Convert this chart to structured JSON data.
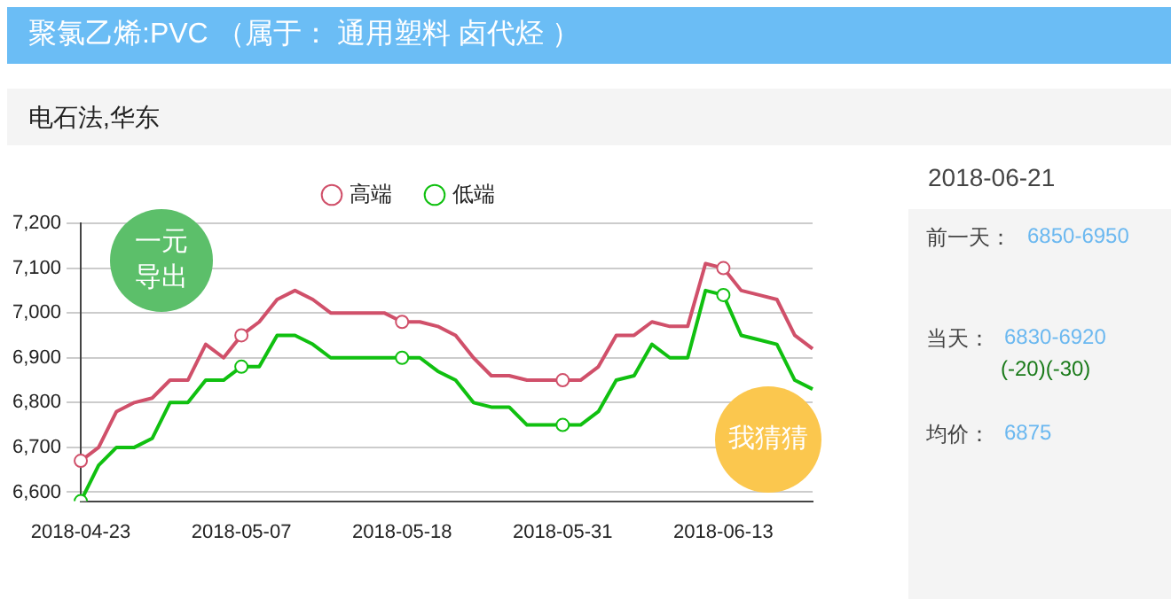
{
  "chart_data": {
    "type": "line",
    "title": "聚氯乙烯:PVC （属于： 通用塑料 卤代烃 ）",
    "subtitle": "电石法,华东",
    "categories": [
      "2018-04-23",
      null,
      null,
      null,
      null,
      null,
      null,
      null,
      null,
      "2018-05-07",
      null,
      null,
      null,
      null,
      null,
      null,
      null,
      null,
      "2018-05-18",
      null,
      null,
      null,
      null,
      null,
      null,
      null,
      null,
      "2018-05-31",
      null,
      null,
      null,
      null,
      null,
      null,
      null,
      null,
      "2018-06-13",
      null,
      null,
      null,
      null,
      null
    ],
    "series": [
      {
        "name": "高端",
        "color": "#d0506a",
        "values": [
          6670,
          6700,
          6780,
          6800,
          6810,
          6850,
          6850,
          6930,
          6900,
          6950,
          6980,
          7030,
          7050,
          7030,
          7000,
          7000,
          7000,
          7000,
          6980,
          6980,
          6970,
          6950,
          6900,
          6860,
          6860,
          6850,
          6850,
          6850,
          6850,
          6880,
          6950,
          6950,
          6980,
          6970,
          6970,
          7110,
          7100,
          7050,
          7040,
          7030,
          6950,
          6920
        ]
      },
      {
        "name": "低端",
        "color": "#10c010",
        "values": [
          6580,
          6660,
          6700,
          6700,
          6720,
          6800,
          6800,
          6850,
          6850,
          6880,
          6880,
          6950,
          6950,
          6930,
          6900,
          6900,
          6900,
          6900,
          6900,
          6900,
          6870,
          6850,
          6800,
          6790,
          6790,
          6750,
          6750,
          6750,
          6750,
          6780,
          6850,
          6860,
          6930,
          6900,
          6900,
          7050,
          7040,
          6950,
          6940,
          6930,
          6850,
          6830
        ]
      }
    ],
    "ylim": [
      6580,
      7200
    ],
    "yticks": [
      {
        "value": 6600,
        "label": "6,600"
      },
      {
        "value": 6700,
        "label": "6,700"
      },
      {
        "value": 6800,
        "label": "6,800"
      },
      {
        "value": 6900,
        "label": "6,900"
      },
      {
        "value": 7000,
        "label": "7,000"
      },
      {
        "value": 7100,
        "label": "7,100"
      },
      {
        "value": 7200,
        "label": "7,200"
      }
    ],
    "grid": "y",
    "legend": "top",
    "line_style": "solid",
    "annotations": [
      "2018-06-21",
      "前一天：",
      "6850-6950",
      "当天：",
      "6830-6920",
      "(-20)(-30)",
      "均价：",
      "6875",
      "一元导出",
      "我猜猜"
    ]
  }
}
